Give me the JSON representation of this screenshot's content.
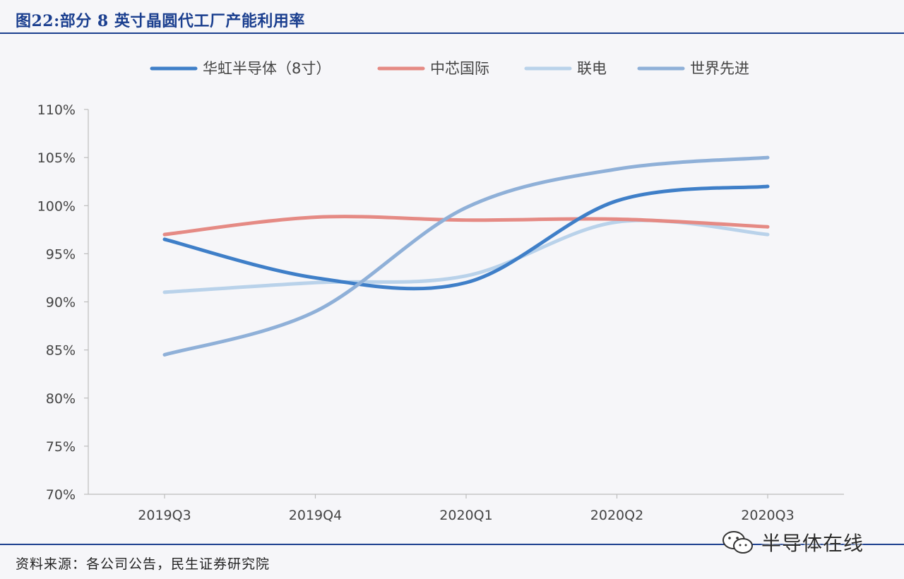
{
  "figure": {
    "title": "图22:部分 8 英寸晶圆代工厂产能利用率",
    "source": "资料来源：各公司公告，民生证券研究院",
    "watermark": "半导体在线"
  },
  "chart_data": {
    "type": "line",
    "categories": [
      "2019Q3",
      "2019Q4",
      "2020Q1",
      "2020Q2",
      "2020Q3"
    ],
    "y_ticks": [
      "70%",
      "75%",
      "80%",
      "85%",
      "90%",
      "95%",
      "100%",
      "105%",
      "110%"
    ],
    "ylim": [
      70,
      110
    ],
    "y_unit": "%",
    "legend_position": "top",
    "grid": false,
    "series": [
      {
        "name": "华虹半导体（8寸）",
        "color": "#3f7fc8",
        "values": [
          96.5,
          92.5,
          92.0,
          100.5,
          102.0
        ]
      },
      {
        "name": "中芯国际",
        "color": "#e58a84",
        "values": [
          97.0,
          98.8,
          98.5,
          98.6,
          97.8
        ]
      },
      {
        "name": "联电",
        "color": "#b9d2ea",
        "values": [
          91.0,
          92.0,
          92.7,
          98.3,
          97.0
        ]
      },
      {
        "name": "世界先进",
        "color": "#8fb0d8",
        "values": [
          84.5,
          89.0,
          99.8,
          103.8,
          105.0
        ]
      }
    ]
  }
}
